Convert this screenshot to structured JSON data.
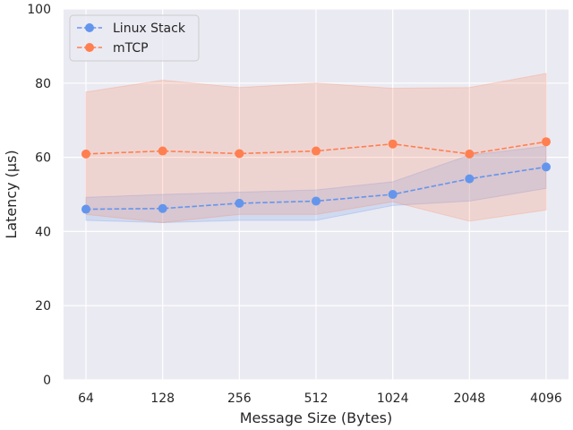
{
  "chart_data": {
    "type": "line",
    "categories": [
      "64",
      "128",
      "256",
      "512",
      "1024",
      "2048",
      "4096"
    ],
    "xlabel": "Message Size (Bytes)",
    "ylabel": "Latency (µs)",
    "ylim": [
      0,
      100
    ],
    "yticks": [
      "0",
      "20",
      "40",
      "60",
      "80",
      "100"
    ],
    "grid": true,
    "legend_position": "top-left",
    "series": [
      {
        "name": "Linux Stack",
        "color": "#6495ED",
        "values": [
          46.0,
          46.2,
          47.6,
          48.2,
          50.0,
          54.2,
          57.4
        ],
        "band_upper": [
          49.2,
          50.0,
          50.6,
          51.2,
          53.4,
          60.6,
          63.0
        ],
        "band_lower": [
          43.0,
          42.4,
          43.0,
          43.0,
          47.0,
          48.2,
          51.6
        ]
      },
      {
        "name": "mTCP",
        "color": "#FF7F50",
        "values": [
          60.9,
          61.7,
          61.0,
          61.7,
          63.6,
          60.9,
          64.2
        ],
        "band_upper": [
          77.6,
          80.8,
          78.8,
          80.0,
          78.6,
          78.8,
          82.6
        ],
        "band_lower": [
          44.6,
          42.4,
          44.6,
          44.6,
          48.0,
          42.8,
          45.8
        ]
      }
    ]
  }
}
